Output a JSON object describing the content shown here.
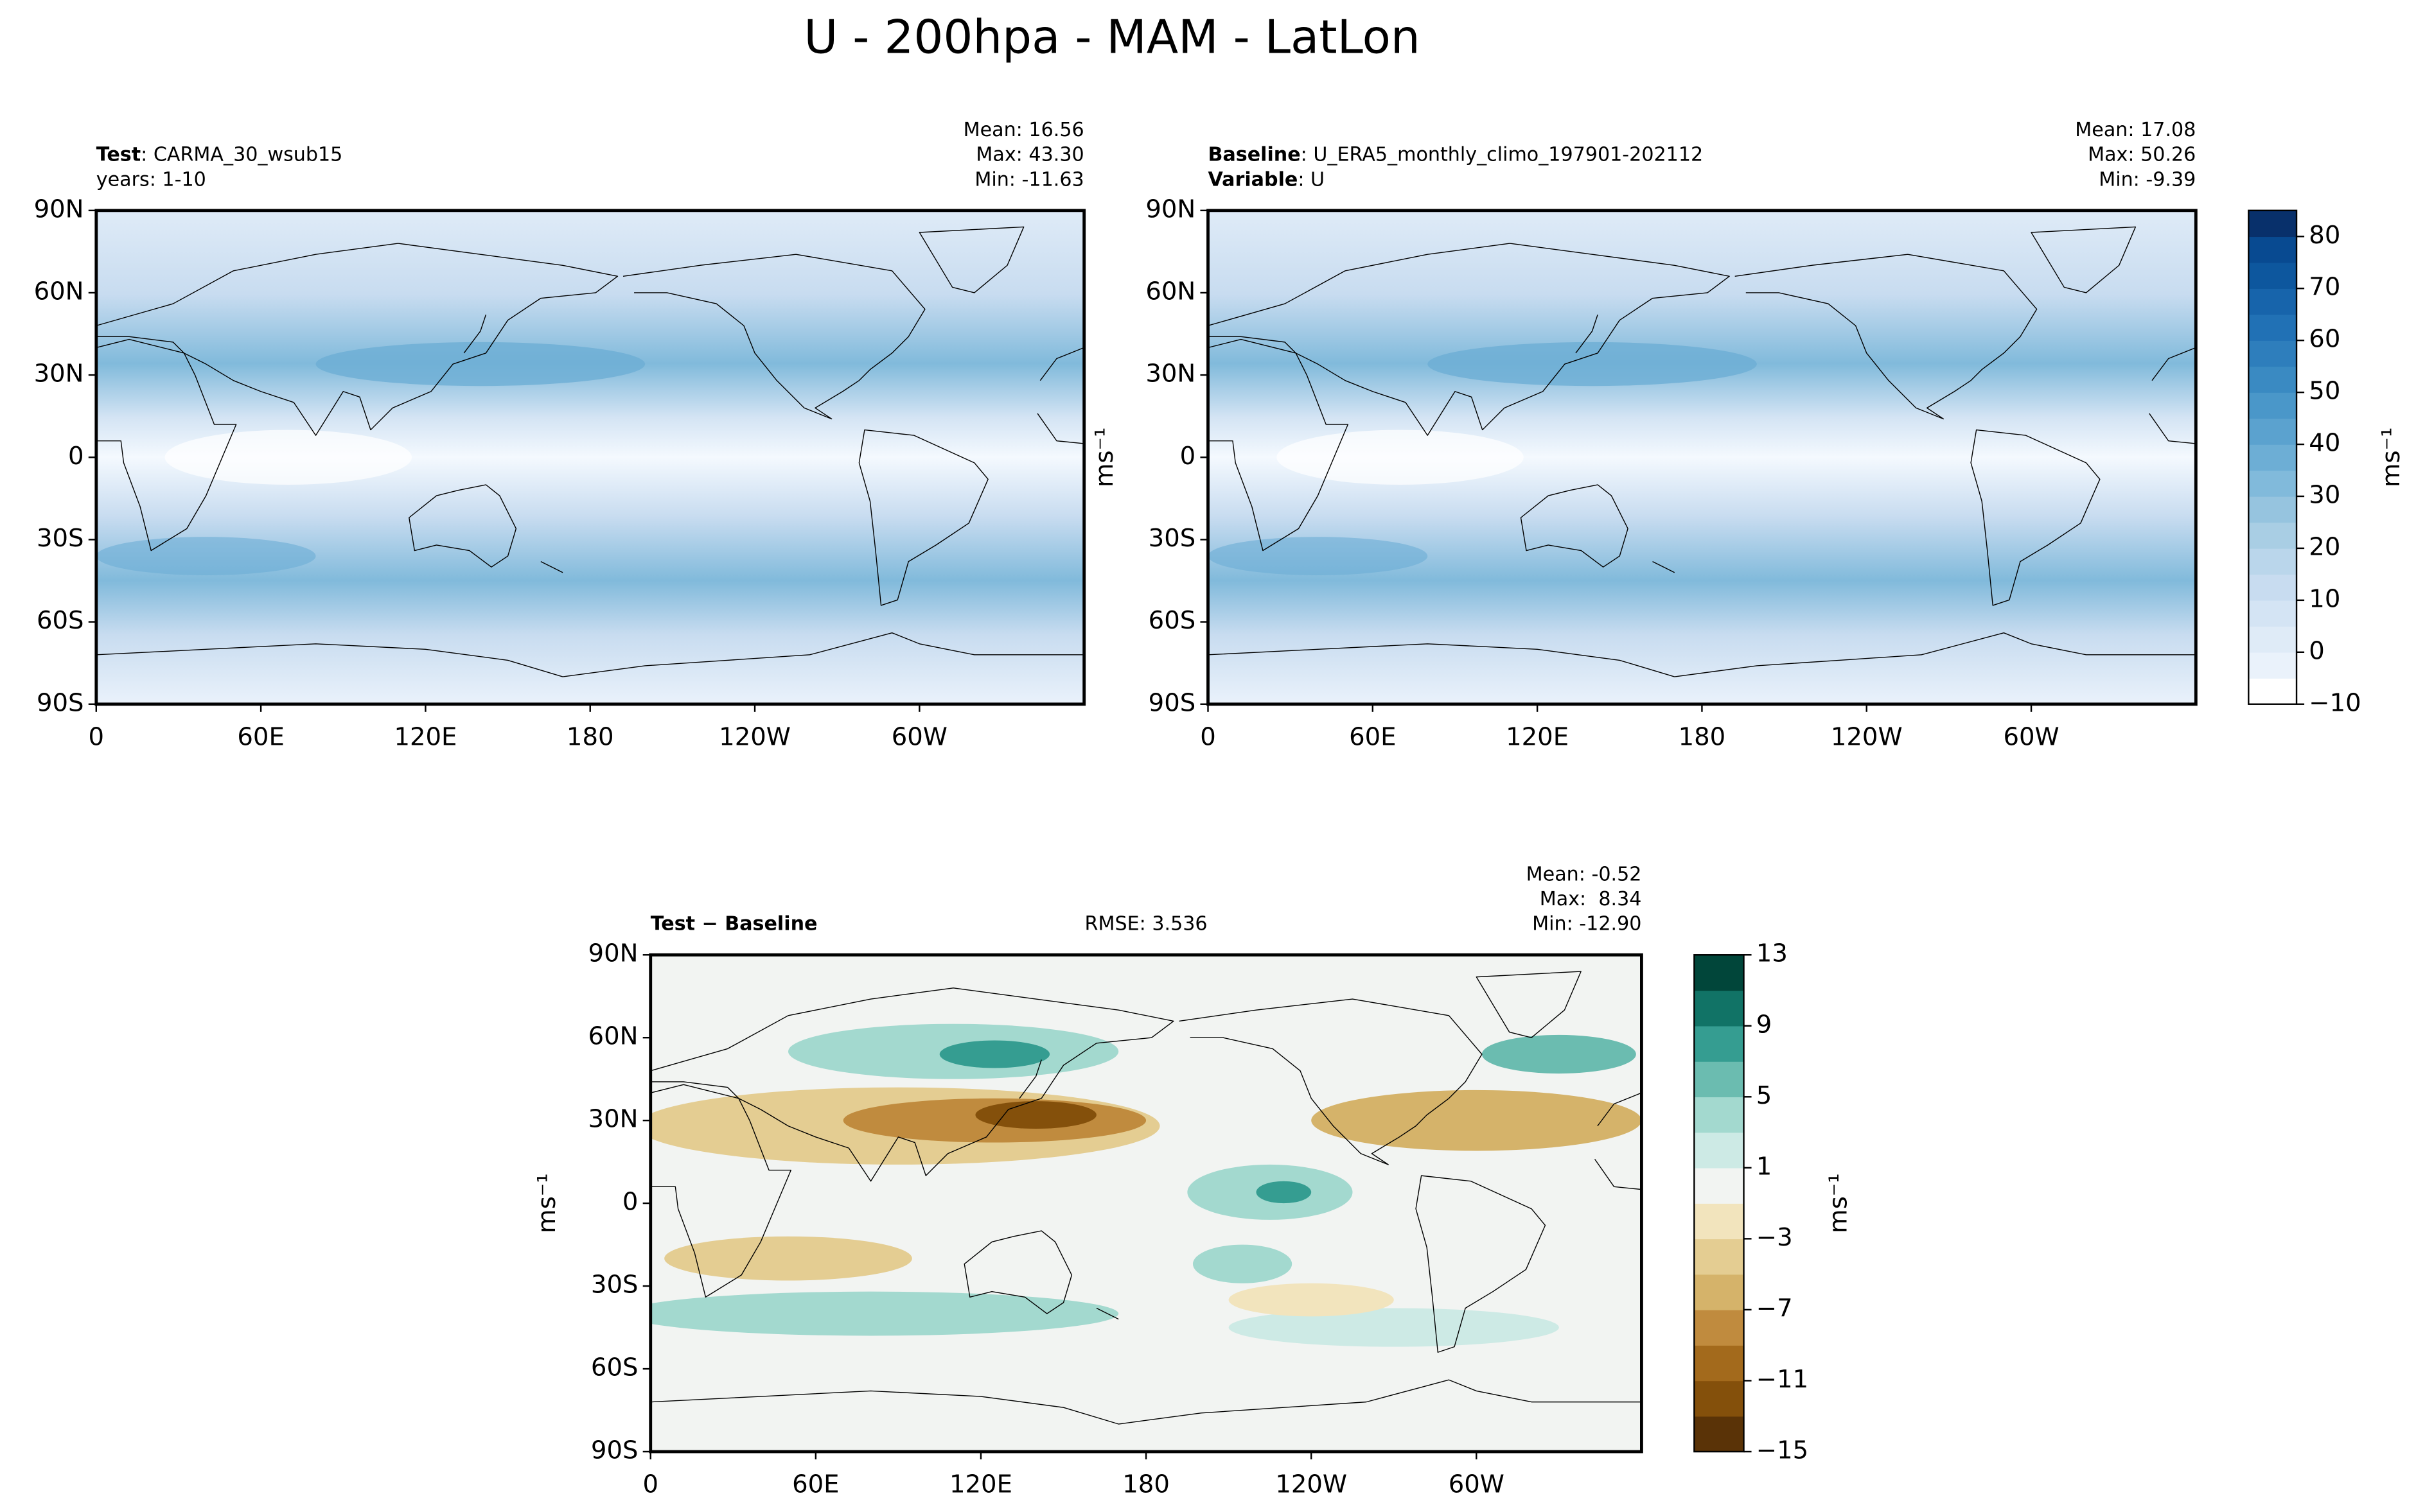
{
  "title": "U - 200hpa - MAM - LatLon",
  "chart_data": [
    {
      "type": "contour",
      "left_lines": [
        {
          "bold": "Test",
          "rest": ": CARMA_30_wsub15"
        },
        {
          "rest": "years: 1-10"
        }
      ],
      "stats": [
        "Mean: 16.56",
        "Max: 43.30",
        "Min: -11.63"
      ],
      "xlim": [
        0,
        360
      ],
      "xticks": [
        0,
        {
          "value": 60,
          "label": "60E"
        },
        {
          "value": 120,
          "label": "120E"
        },
        180,
        {
          "value": 240,
          "label": "120W"
        },
        {
          "value": 300,
          "label": "60W"
        }
      ],
      "ylim": [
        -90,
        90
      ],
      "yticks": [
        {
          "value": -90,
          "label": "90S"
        },
        {
          "value": -60,
          "label": "60S"
        },
        {
          "value": -30,
          "label": "30S"
        },
        0,
        {
          "value": 30,
          "label": "30N"
        },
        {
          "value": 60,
          "label": "60N"
        },
        {
          "value": 90,
          "label": "90N"
        }
      ]
    },
    {
      "type": "contour",
      "left_lines": [
        {
          "bold": "Baseline",
          "rest": ": U_ERA5_monthly_climo_197901-202112"
        },
        {
          "bold": "Variable",
          "rest": ": U"
        }
      ],
      "stats": [
        "Mean: 17.08",
        "Max: 50.26",
        "Min: -9.39"
      ],
      "ylabel": "ms⁻¹",
      "xlim": [
        0,
        360
      ],
      "xticks": [
        0,
        {
          "value": 60,
          "label": "60E"
        },
        {
          "value": 120,
          "label": "120E"
        },
        180,
        {
          "value": 240,
          "label": "120W"
        },
        {
          "value": 300,
          "label": "60W"
        }
      ],
      "ylim": [
        -90,
        90
      ],
      "yticks": [
        {
          "value": -90,
          "label": "90S"
        },
        {
          "value": -60,
          "label": "60S"
        },
        {
          "value": -30,
          "label": "30S"
        },
        0,
        {
          "value": 30,
          "label": "30N"
        },
        {
          "value": 60,
          "label": "60N"
        },
        {
          "value": 90,
          "label": "90N"
        }
      ],
      "colorbar": {
        "label": "ms⁻¹",
        "lim": [
          -10,
          85
        ],
        "levels": [
          -10,
          -5,
          0,
          5,
          10,
          15,
          20,
          25,
          30,
          35,
          40,
          45,
          50,
          55,
          60,
          65,
          70,
          75,
          80,
          85
        ],
        "colors": [
          "#ffffff",
          "#eaf2fb",
          "#dfebf7",
          "#d4e4f4",
          "#c8dcf0",
          "#bad6eb",
          "#a9cee4",
          "#96c4df",
          "#81badb",
          "#6daed5",
          "#5ba2cf",
          "#4a97c9",
          "#3a8ac2",
          "#2e7ebc",
          "#2171b5",
          "#1764ab",
          "#0d579e",
          "#084a91",
          "#08306b"
        ],
        "ticks": [
          {
            "value": -10,
            "label": "−10"
          },
          0,
          10,
          20,
          30,
          40,
          50,
          60,
          70,
          80
        ]
      }
    },
    {
      "type": "contour",
      "left_lines": [
        {
          "bold": "Test − Baseline"
        }
      ],
      "center_title": "RMSE: 3.536",
      "stats": [
        "Mean: -0.52",
        "Max:  8.34",
        "Min: -12.90"
      ],
      "ylabel": "ms⁻¹",
      "xlim": [
        0,
        360
      ],
      "xticks": [
        0,
        {
          "value": 60,
          "label": "60E"
        },
        {
          "value": 120,
          "label": "120E"
        },
        180,
        {
          "value": 240,
          "label": "120W"
        },
        {
          "value": 300,
          "label": "60W"
        }
      ],
      "ylim": [
        -90,
        90
      ],
      "yticks": [
        {
          "value": -90,
          "label": "90S"
        },
        {
          "value": -60,
          "label": "60S"
        },
        {
          "value": -30,
          "label": "30S"
        },
        0,
        {
          "value": 30,
          "label": "30N"
        },
        {
          "value": 60,
          "label": "60N"
        },
        {
          "value": 90,
          "label": "90N"
        }
      ],
      "colorbar": {
        "label": "ms⁻¹",
        "lim": [
          -15,
          13
        ],
        "levels": [
          -15,
          -13,
          -11,
          -9,
          -7,
          -5,
          -3,
          -1,
          1,
          3,
          5,
          7,
          9,
          11,
          13
        ],
        "colors": [
          "#5a3307",
          "#84500b",
          "#a36a1c",
          "#c08b3e",
          "#d5b36a",
          "#e4cd92",
          "#f2e4bd",
          "#f2f4f2",
          "#cdeae5",
          "#a3d9cf",
          "#6bbcb0",
          "#359d91",
          "#117366",
          "#01463a"
        ],
        "ticks": [
          {
            "value": -15,
            "label": "−15"
          },
          {
            "value": -11,
            "label": "−11"
          },
          {
            "value": -7,
            "label": "−7"
          },
          {
            "value": -3,
            "label": "−3"
          },
          1,
          5,
          9,
          13
        ]
      }
    }
  ]
}
